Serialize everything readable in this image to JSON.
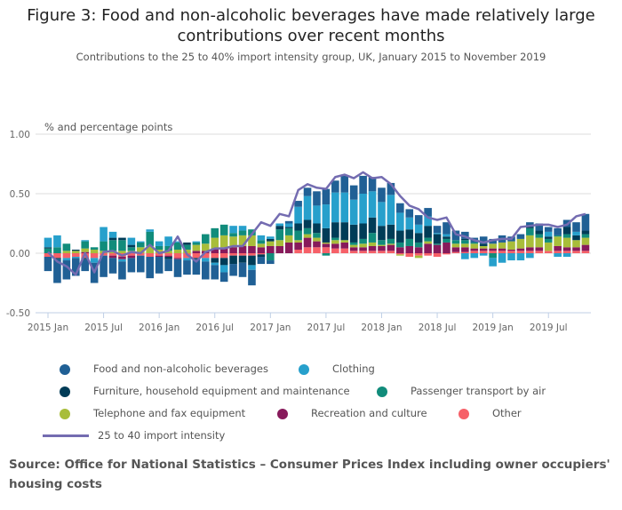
{
  "title": "Figure 3: Food and non-alcoholic beverages have made relatively large contributions over recent months",
  "subtitle": "Contributions to the 25 to 40% import intensity group, UK, January 2015 to November 2019",
  "source": "Source: Office for National Statistics – Consumer Prices Index including owner occupiers' housing costs",
  "chart_data": {
    "type": "bar",
    "stacked": true,
    "ylabel": "% and percentage points",
    "ylim": [
      -0.5,
      1.0
    ],
    "yticks": [
      "1.00",
      "0.50",
      "0.00",
      "-0.50"
    ],
    "ytick_values": [
      1.0,
      0.5,
      0.0,
      -0.5
    ],
    "xticks": [
      "2015 Jan",
      "2015 Jul",
      "2016 Jan",
      "2016 Jul",
      "2017 Jan",
      "2017 Jul",
      "2018 Jan",
      "2018 Jul",
      "2019 Jan",
      "2019 Jul"
    ],
    "xtick_month_index": [
      0,
      6,
      12,
      18,
      24,
      30,
      36,
      42,
      48,
      54
    ],
    "x_range": [
      "2015 Jan",
      "2019 Nov"
    ],
    "grid": true,
    "legend_position": "bottom",
    "series": [
      {
        "name": "Food and non-alcoholic beverages",
        "color": "#206095",
        "values": [
          -0.12,
          -0.2,
          -0.16,
          -0.15,
          -0.1,
          -0.17,
          -0.18,
          -0.13,
          -0.15,
          -0.12,
          -0.14,
          -0.18,
          -0.14,
          -0.1,
          -0.15,
          -0.12,
          -0.13,
          -0.15,
          -0.12,
          -0.08,
          -0.1,
          -0.12,
          -0.13,
          -0.06,
          -0.03,
          0.0,
          0.02,
          0.05,
          0.07,
          0.12,
          0.13,
          0.1,
          0.14,
          0.12,
          0.15,
          0.12,
          0.12,
          0.1,
          0.08,
          0.07,
          0.08,
          0.07,
          0.06,
          0.1,
          0.08,
          0.06,
          0.04,
          0.06,
          0.04,
          0.06,
          0.04,
          0.04,
          0.04,
          0.06,
          0.04,
          0.06,
          0.06,
          0.08,
          0.14
        ]
      },
      {
        "name": "Clothing",
        "color": "#27a0cc",
        "values": [
          0.08,
          0.1,
          -0.02,
          -0.01,
          0.01,
          -0.04,
          0.12,
          0.05,
          -0.02,
          0.06,
          0.01,
          0.02,
          0.04,
          0.08,
          0.01,
          -0.02,
          0.01,
          -0.03,
          -0.02,
          -0.06,
          0.06,
          0.04,
          -0.04,
          0.04,
          0.02,
          0.02,
          0.03,
          0.14,
          0.2,
          0.15,
          0.2,
          0.25,
          0.25,
          0.21,
          0.25,
          0.22,
          0.2,
          0.25,
          0.15,
          0.1,
          0.07,
          0.08,
          0.01,
          0.02,
          0.0,
          -0.05,
          -0.04,
          -0.02,
          -0.07,
          -0.08,
          -0.06,
          -0.06,
          -0.04,
          0.0,
          0.04,
          -0.03,
          -0.03,
          0.03,
          0.0
        ]
      },
      {
        "name": "Furniture, household equipment and maintenance",
        "color": "#003c57",
        "values": [
          0.01,
          -0.01,
          0,
          0.01,
          -0.01,
          0,
          0,
          0.02,
          0.02,
          0.02,
          0,
          0,
          0,
          -0.02,
          0,
          0.02,
          -0.01,
          0,
          -0.04,
          -0.06,
          -0.07,
          -0.06,
          -0.08,
          -0.02,
          0.02,
          0.03,
          0.01,
          0.06,
          0.07,
          0.08,
          0.12,
          0.13,
          0.15,
          0.15,
          0.13,
          0.13,
          0.12,
          0.12,
          0.1,
          0.08,
          0.08,
          0.1,
          0.08,
          0.02,
          0.0,
          0.01,
          0.0,
          0.02,
          0.0,
          0.0,
          0.0,
          0.0,
          0.01,
          0.03,
          0.02,
          0.0,
          0.06,
          0.04,
          0.03
        ]
      },
      {
        "name": "Passenger transport by air",
        "color": "#118c7b",
        "values": [
          0.04,
          0.05,
          0.06,
          0,
          0.06,
          0.02,
          0.08,
          0.09,
          0.09,
          0.03,
          0.04,
          0.12,
          0.03,
          0.04,
          0.06,
          0.04,
          0.02,
          0.08,
          0.08,
          0.09,
          0.03,
          0.04,
          0.05,
          0.03,
          -0.06,
          0.09,
          0.06,
          0.08,
          0.05,
          0.04,
          -0.02,
          0.02,
          0.0,
          0.02,
          0.04,
          0.08,
          0.04,
          0.04,
          0.04,
          0.06,
          0.04,
          0.03,
          0.01,
          0.03,
          0.03,
          0.03,
          0.01,
          0.0,
          -0.04,
          0.0,
          0.0,
          0.0,
          0.06,
          0.03,
          0.03,
          0.01,
          0.03,
          0.0,
          0.03
        ]
      },
      {
        "name": "Telephone and fax equipment",
        "color": "#a8bd3a",
        "values": [
          0,
          0,
          0.02,
          0.02,
          0.03,
          0.03,
          0.02,
          0.02,
          0.02,
          0.02,
          0.05,
          0.06,
          0.03,
          0.02,
          0.03,
          0.03,
          0.05,
          0.06,
          0.09,
          0.1,
          0.09,
          0.09,
          0.09,
          0.03,
          0.04,
          0.05,
          0.06,
          0.02,
          0.03,
          0.03,
          0.01,
          0.03,
          0.02,
          0.02,
          0.03,
          0.03,
          0.01,
          0.01,
          -0.01,
          0.0,
          -0.02,
          0.02,
          0.0,
          0.0,
          0.03,
          0.03,
          0.04,
          0.02,
          0.04,
          0.05,
          0.07,
          0.08,
          0.1,
          0.08,
          0.07,
          0.08,
          0.08,
          0.06,
          0.06
        ]
      },
      {
        "name": "Recreation and culture",
        "color": "#871a5b",
        "values": [
          0,
          0,
          0,
          0,
          0.01,
          0,
          0,
          -0.02,
          -0.02,
          -0.02,
          0,
          0,
          -0.01,
          -0.01,
          -0.01,
          0,
          0.02,
          0.02,
          0.04,
          0.05,
          0.05,
          0.06,
          0.06,
          0.05,
          0.06,
          0.06,
          0.09,
          0.06,
          0.08,
          0.05,
          0.03,
          0.04,
          0.05,
          0.03,
          0.03,
          0.04,
          0.04,
          0.05,
          0.05,
          0.06,
          0.05,
          0.08,
          0.07,
          0.09,
          0.04,
          0.04,
          0.02,
          0.02,
          0.02,
          0.02,
          0.01,
          0.02,
          0.03,
          0.03,
          0.0,
          0.04,
          0.03,
          0.03,
          0.05
        ]
      },
      {
        "name": "Other",
        "color": "#f66068",
        "values": [
          -0.03,
          -0.04,
          -0.04,
          -0.03,
          -0.04,
          -0.04,
          -0.02,
          -0.02,
          -0.03,
          -0.02,
          -0.02,
          -0.03,
          -0.02,
          -0.02,
          -0.04,
          -0.04,
          -0.04,
          -0.04,
          -0.04,
          -0.04,
          -0.02,
          -0.02,
          -0.02,
          -0.01,
          0.0,
          0.0,
          0.0,
          0.03,
          0.05,
          0.05,
          0.05,
          0.04,
          0.04,
          0.02,
          0.02,
          0.02,
          0.02,
          0.02,
          -0.01,
          -0.03,
          -0.02,
          -0.02,
          -0.03,
          -0.01,
          0.01,
          0.01,
          0.02,
          0.02,
          0.02,
          0.02,
          0.02,
          0.02,
          0.02,
          0.02,
          0.02,
          0.02,
          0.02,
          0.02,
          0.02
        ]
      }
    ],
    "line": {
      "name": "25 to 40 import intensity",
      "color": "#746cb1",
      "values": [
        0.01,
        -0.07,
        -0.11,
        -0.18,
        0.0,
        -0.16,
        0.01,
        0.02,
        -0.02,
        0.01,
        0.0,
        0.07,
        0.0,
        0.02,
        0.14,
        -0.01,
        -0.07,
        0.01,
        0.04,
        0.04,
        0.06,
        0.06,
        0.16,
        0.26,
        0.23,
        0.33,
        0.31,
        0.53,
        0.58,
        0.55,
        0.54,
        0.64,
        0.66,
        0.63,
        0.68,
        0.63,
        0.64,
        0.58,
        0.48,
        0.4,
        0.37,
        0.3,
        0.28,
        0.3,
        0.16,
        0.14,
        0.11,
        0.09,
        0.11,
        0.12,
        0.12,
        0.22,
        0.23,
        0.24,
        0.24,
        0.22,
        0.24,
        0.31,
        0.33
      ]
    }
  }
}
